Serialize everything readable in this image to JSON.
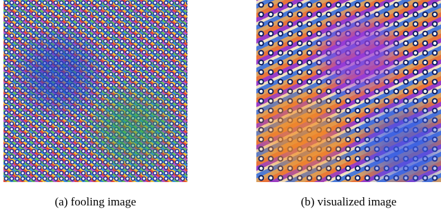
{
  "figure": {
    "subfigures": [
      {
        "caption": "(a) fooling image"
      },
      {
        "caption": "(b) visualized image"
      }
    ]
  }
}
